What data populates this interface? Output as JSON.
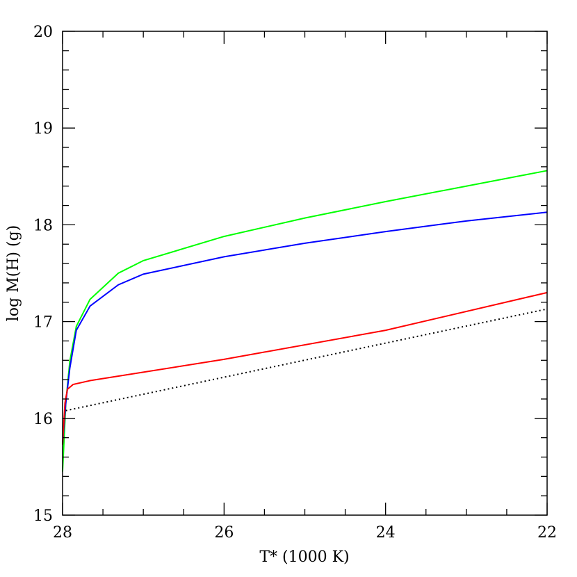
{
  "chart_data": {
    "type": "line",
    "xlabel": "T* (1000 K)",
    "ylabel": "log M(H) (g)",
    "xlim": [
      28,
      22
    ],
    "ylim": [
      15,
      20
    ],
    "xticks": [
      28,
      26,
      24,
      22
    ],
    "yticks": [
      15,
      16,
      17,
      18,
      19,
      20
    ],
    "xminorticks": [
      27.5,
      27,
      26.5,
      25.5,
      25,
      24.5,
      23.5,
      23,
      22.5
    ],
    "yminorticks": [
      15.2,
      15.4,
      15.6,
      15.8,
      16.2,
      16.4,
      16.6,
      16.8,
      17.2,
      17.4,
      17.6,
      17.8,
      18.2,
      18.4,
      18.6,
      18.8,
      19.2,
      19.4,
      19.6,
      19.8
    ],
    "series": [
      {
        "color": "#00ff00",
        "linestyle": "solid",
        "x": [
          28,
          27.96,
          27.91,
          27.83,
          27.66,
          27.31,
          27,
          26,
          25,
          24,
          23,
          22
        ],
        "values": [
          15.45,
          16.16,
          16.59,
          16.95,
          17.23,
          17.5,
          17.63,
          17.88,
          18.07,
          18.24,
          18.4,
          18.56
        ]
      },
      {
        "color": "#0000ff",
        "linestyle": "solid",
        "x": [
          28,
          27.96,
          27.91,
          27.83,
          27.66,
          27.31,
          27,
          26,
          25,
          24,
          23,
          22
        ],
        "values": [
          15.73,
          16.16,
          16.52,
          16.91,
          17.16,
          17.38,
          17.49,
          17.67,
          17.81,
          17.93,
          18.04,
          18.13
        ]
      },
      {
        "color": "#ff0000",
        "linestyle": "solid",
        "x": [
          28,
          27.97,
          27.94,
          27.87,
          27.66,
          26,
          24,
          22
        ],
        "values": [
          15.73,
          16.16,
          16.3,
          16.35,
          16.39,
          16.61,
          16.91,
          17.3
        ]
      },
      {
        "color": "#000000",
        "linestyle": "dotted",
        "x": [
          27.96,
          22
        ],
        "values": [
          16.08,
          17.13
        ]
      }
    ]
  }
}
